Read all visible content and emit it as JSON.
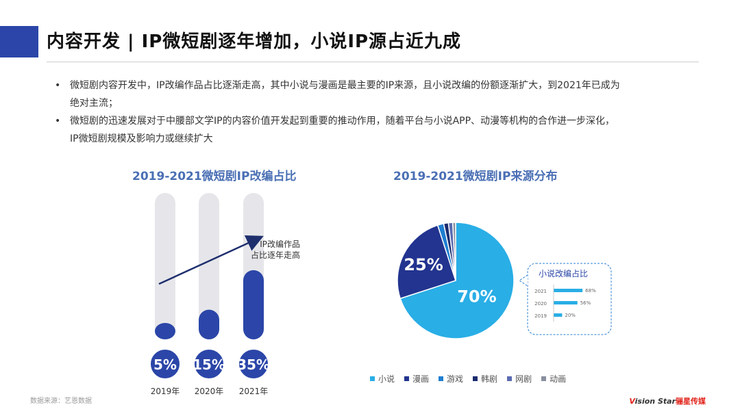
{
  "header": {
    "title": "内容开发 | IP微短剧逐年增加，小说IP源占近九成",
    "accent_color": "#2b46a8"
  },
  "bullets": [
    {
      "text_line1": "微短剧内容开发中，IP改编作品占比逐渐走高，其中小说与漫画是最主要的IP来源，且小说改编的份额逐渐扩大，到2021年已成为",
      "text_line2": "绝对主流；"
    },
    {
      "text_line1": "微短剧的迅速发展对于中腰部文学IP的内容价值开发起到重要的推动作用，随着平台与小说APP、动漫等机构的合作进一步深化，",
      "text_line2": "IP微短剧规模及影响力或继续扩大"
    }
  ],
  "bullet_symbol": "•",
  "chart_data": [
    {
      "type": "bar",
      "title": "2019-2021微短剧IP改编占比",
      "categories": [
        "2019年",
        "2020年",
        "2021年"
      ],
      "values": [
        5,
        15,
        35
      ],
      "value_labels": [
        "5%",
        "15%",
        "35%"
      ],
      "ylim": [
        0,
        100
      ],
      "annotation": {
        "line1": "IP改编作品",
        "line2": "占比逐年走高"
      },
      "colors": {
        "bar": "#2b46a8",
        "track": "#e6e6ea"
      }
    },
    {
      "type": "pie",
      "title": "2019-2021微短剧IP来源分布",
      "series": [
        {
          "name": "小说",
          "value": 70,
          "label": "70%",
          "color": "#29aee6"
        },
        {
          "name": "漫画",
          "value": 25,
          "label": "25%",
          "color": "#22348f"
        },
        {
          "name": "游戏",
          "value": 1.7,
          "label": "",
          "color": "#1f7fd0"
        },
        {
          "name": "韩剧",
          "value": 1.3,
          "label": "",
          "color": "#1b2c6e"
        },
        {
          "name": "网剧",
          "value": 1.2,
          "label": "",
          "color": "#5a6bb0"
        },
        {
          "name": "动画",
          "value": 0.8,
          "label": "",
          "color": "#8a8f9e"
        }
      ],
      "inset": {
        "type": "bar",
        "title": "小说改编占比",
        "categories": [
          "2021",
          "2020",
          "2019"
        ],
        "values": [
          68,
          56,
          20
        ],
        "value_labels": [
          "68%",
          "56%",
          "20%"
        ],
        "color": "#29aee6"
      }
    }
  ],
  "footer": {
    "source": "数据来源：艺恩数据",
    "brand_v": "V",
    "brand_en": "ision Star",
    "brand_cn": "骊星传媒"
  }
}
